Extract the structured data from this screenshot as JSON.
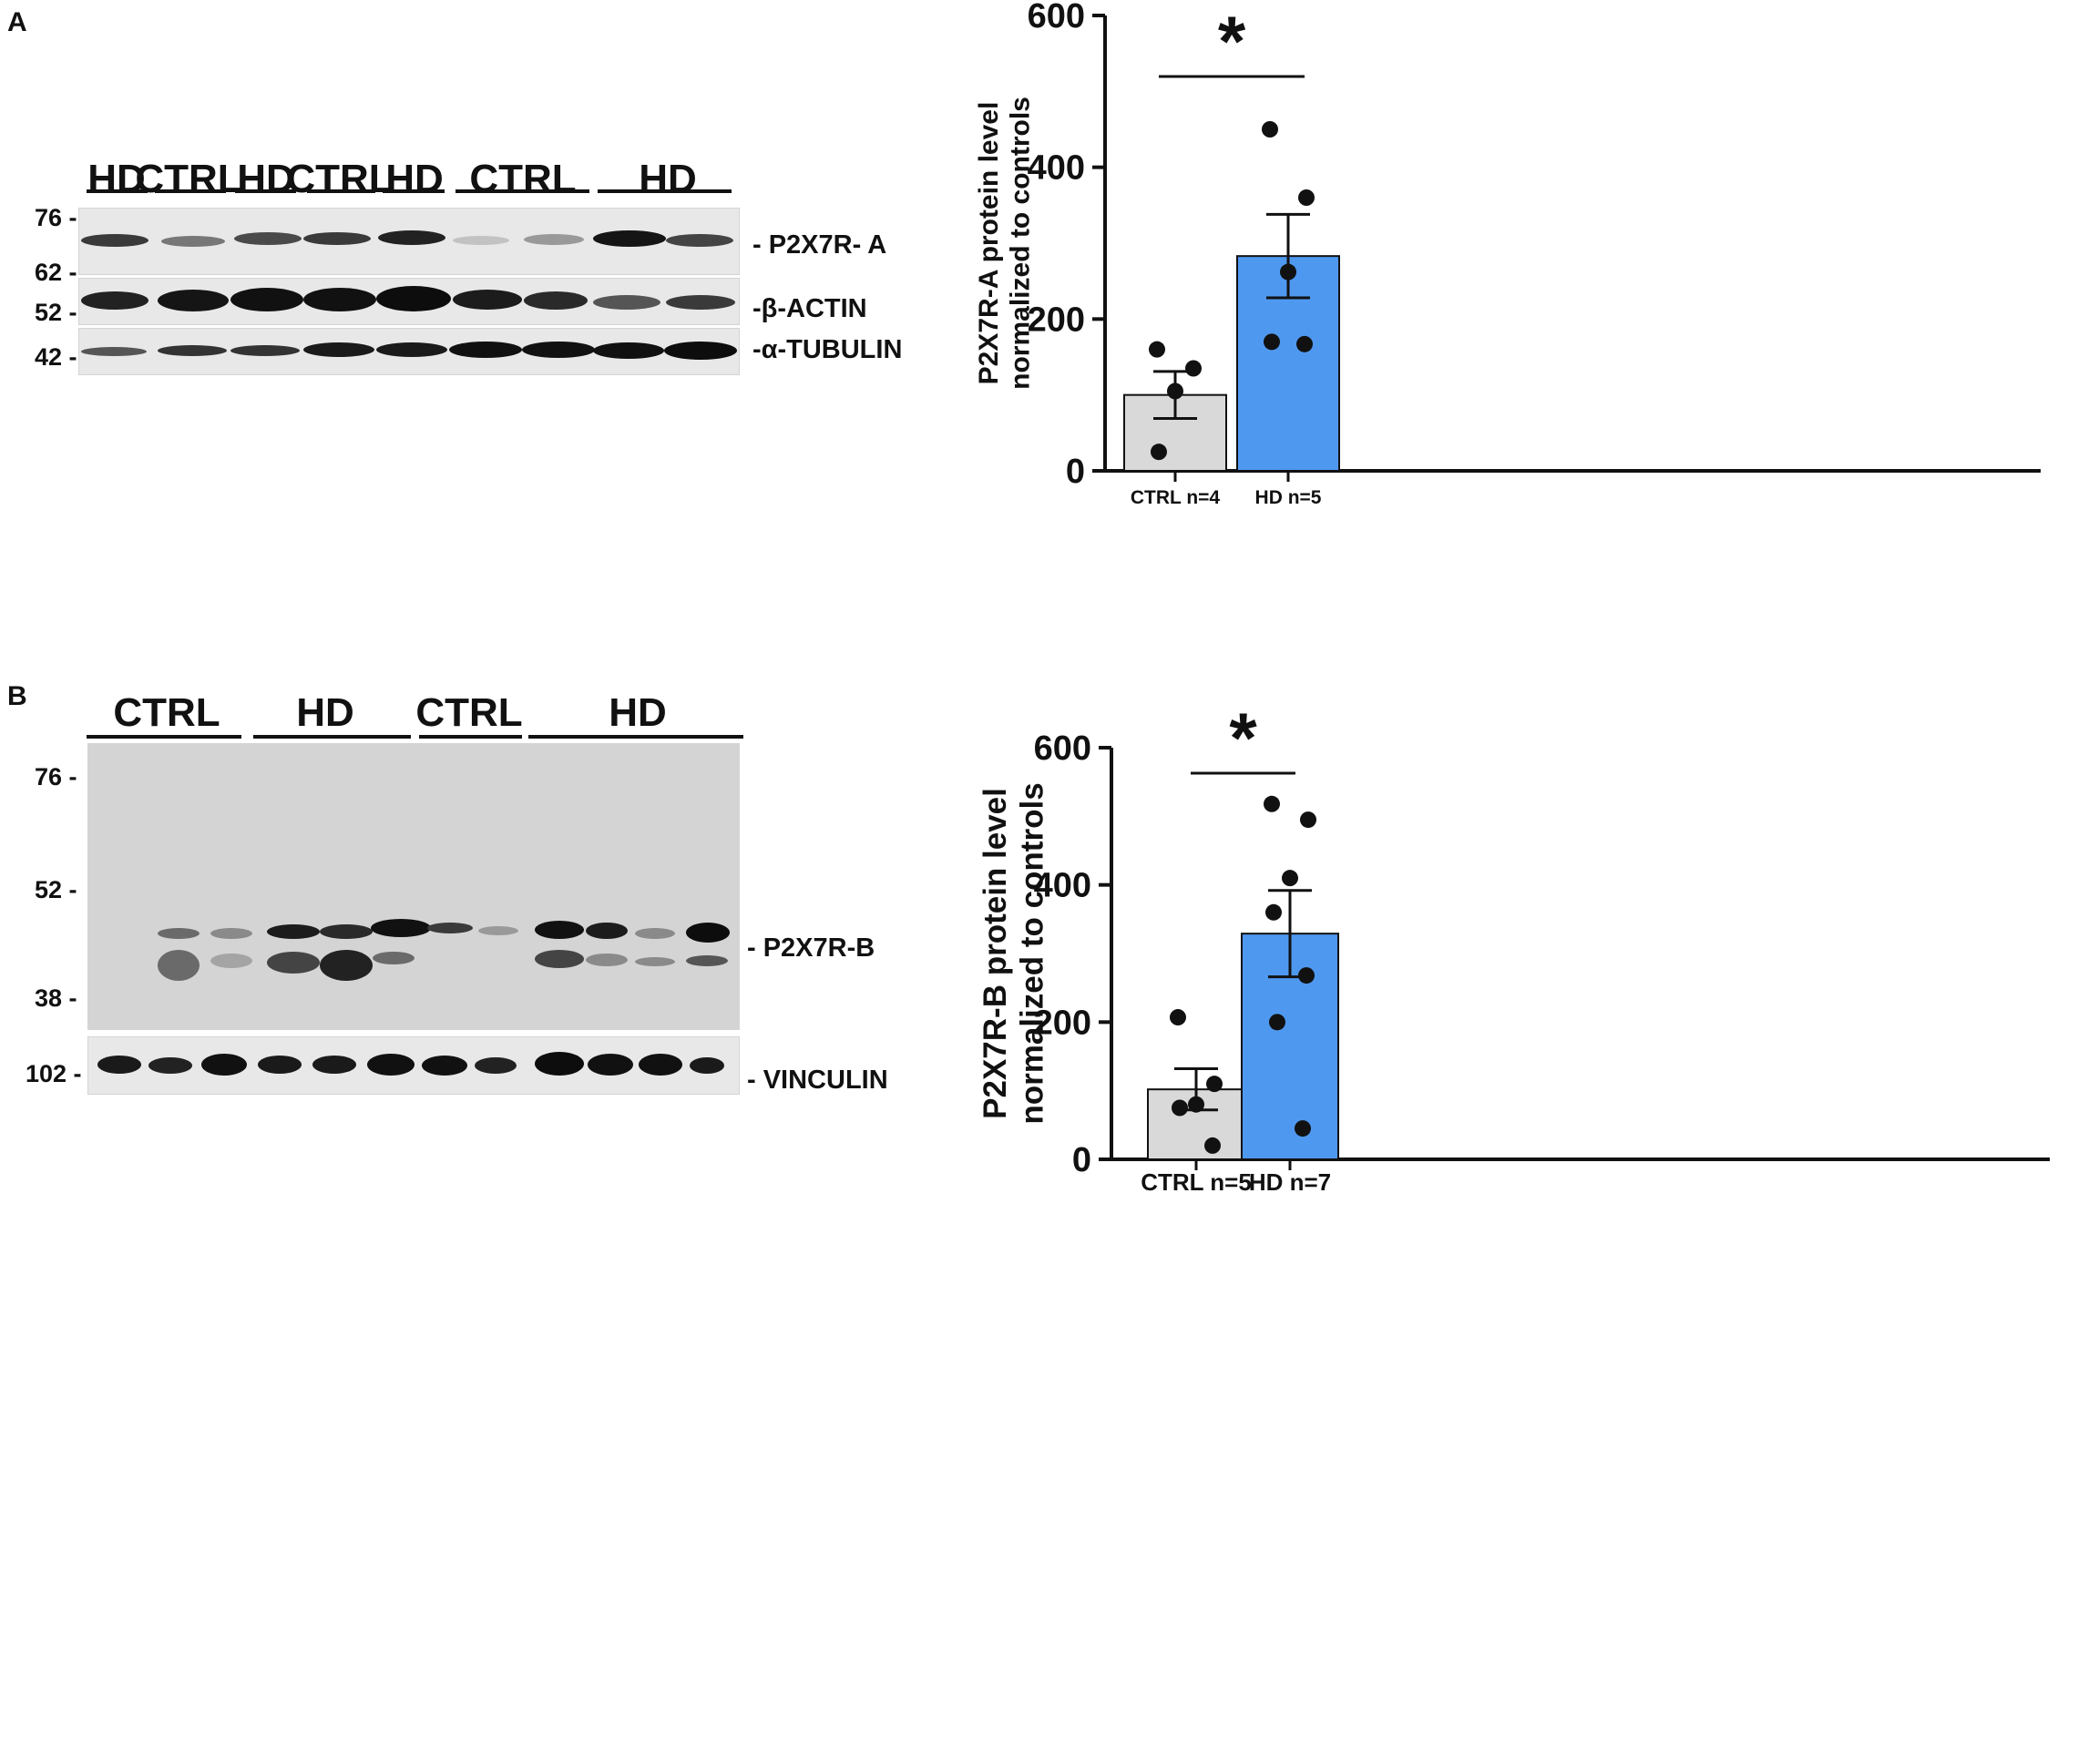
{
  "panels": {
    "a": {
      "letter": "A",
      "lane_groups": [
        {
          "label": "HD"
        },
        {
          "label": "CTRL"
        },
        {
          "label": "HD"
        },
        {
          "label": "CTRL"
        },
        {
          "label": "HD"
        },
        {
          "label": "CTRL"
        },
        {
          "label": "HD"
        }
      ],
      "mw_markers": [
        "76 -",
        "62 -",
        "52 -",
        "42 -"
      ],
      "band_labels": [
        "- P2X7R- A",
        "-β-ACTIN",
        "-α-TUBULIN"
      ]
    },
    "b": {
      "letter": "B",
      "lane_groups": [
        {
          "label": "CTRL"
        },
        {
          "label": "HD"
        },
        {
          "label": "CTRL"
        },
        {
          "label": "HD"
        }
      ],
      "mw_markers": [
        "76 -",
        "52 -",
        "38 -",
        "102 -"
      ],
      "band_labels": [
        "- P2X7R-B",
        "- VINCULIN"
      ]
    }
  },
  "colors": {
    "ctrl_bar": "#d9d9d9",
    "hd_bar": "#4f98f0",
    "points": "#111111"
  },
  "chart_data": [
    {
      "type": "bar",
      "panel": "A",
      "categories": [
        "CTRL n=4",
        "HD n=5"
      ],
      "values": [
        100,
        283
      ],
      "sem": [
        31,
        55
      ],
      "points": [
        [
          160,
          135,
          105,
          25
        ],
        [
          450,
          360,
          262,
          170,
          167
        ]
      ],
      "ylabel_lines": [
        "P2X7R-A protein level",
        "normalized to controls"
      ],
      "yticks": [
        0,
        200,
        400,
        600
      ],
      "ylim": [
        0,
        600
      ],
      "significance": "*"
    },
    {
      "type": "bar",
      "panel": "B",
      "categories": [
        "CTRL n=5",
        "HD n=7"
      ],
      "values": [
        102,
        329
      ],
      "sem": [
        30,
        63
      ],
      "points": [
        [
          207,
          110,
          80,
          75,
          20
        ],
        [
          518,
          495,
          410,
          360,
          268,
          200,
          45
        ]
      ],
      "ylabel_lines": [
        "P2X7R-B protein level",
        "normalized to controls"
      ],
      "yticks": [
        0,
        200,
        400,
        600
      ],
      "ylim": [
        0,
        600
      ],
      "significance": "*"
    }
  ]
}
